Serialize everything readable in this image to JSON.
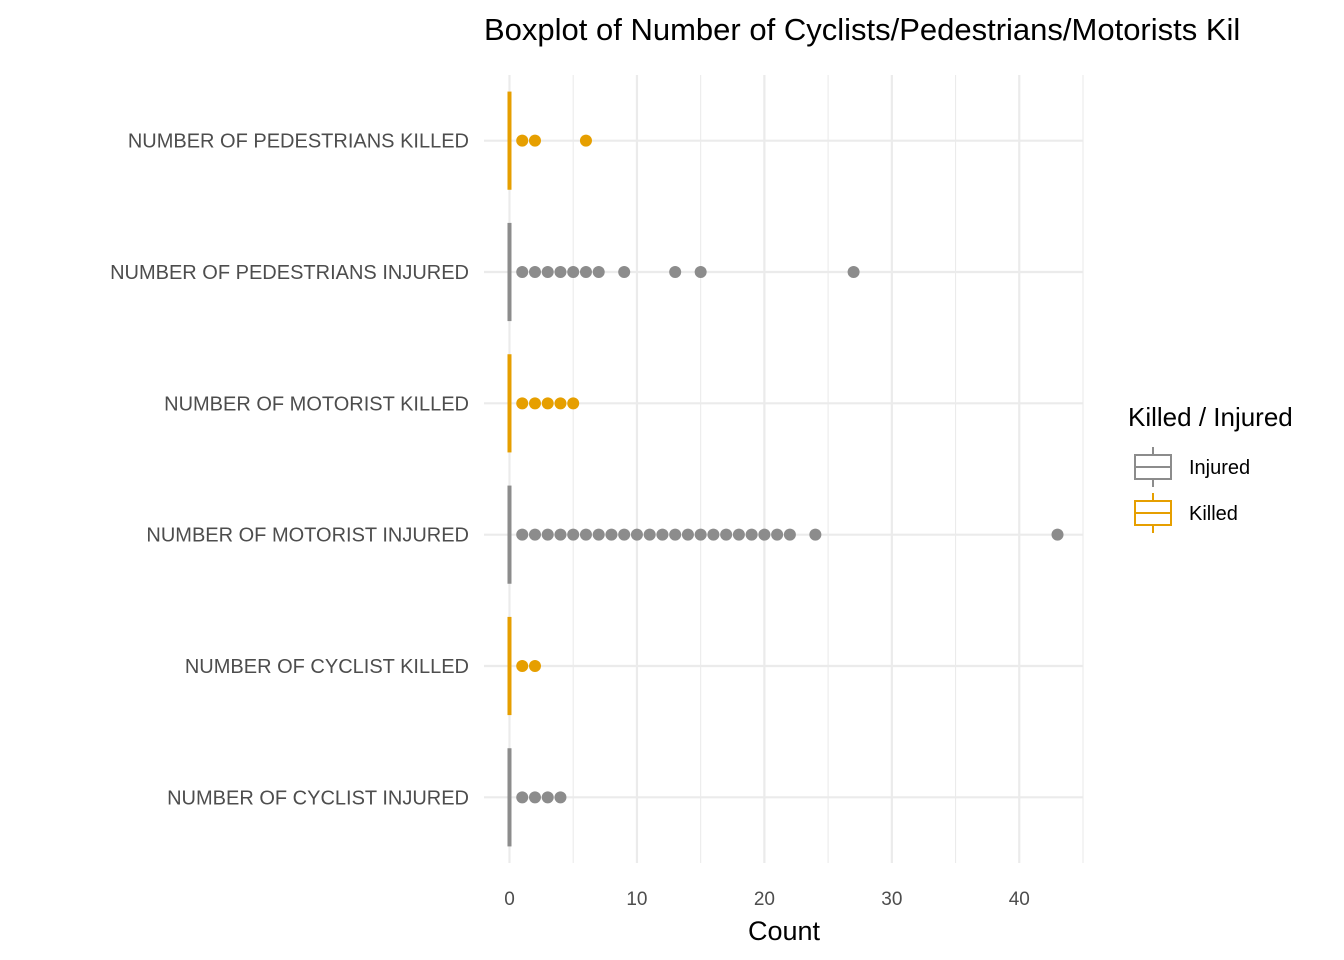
{
  "chart_data": {
    "type": "boxplot",
    "title": "Boxplot of Number of Cyclists/Pedestrians/Motorists Kil",
    "xlabel": "Count",
    "ylabel": "",
    "xlim": [
      -2,
      45
    ],
    "x_ticks": [
      0,
      10,
      20,
      30,
      40
    ],
    "grid": true,
    "legend": {
      "title": "Killed / Injured",
      "position": "right",
      "entries": [
        {
          "name": "Injured",
          "color": "#8c8c8c"
        },
        {
          "name": "Killed",
          "color": "#e69f00"
        }
      ]
    },
    "categories": [
      "NUMBER OF PEDESTRIANS KILLED",
      "NUMBER OF PEDESTRIANS INJURED",
      "NUMBER OF MOTORIST KILLED",
      "NUMBER OF MOTORIST INJURED",
      "NUMBER OF CYCLIST KILLED",
      "NUMBER OF CYCLIST INJURED"
    ],
    "series": [
      {
        "category": "NUMBER OF PEDESTRIANS KILLED",
        "group": "Killed",
        "median": 0,
        "q1": 0,
        "q3": 0,
        "outliers": [
          1,
          2,
          6
        ]
      },
      {
        "category": "NUMBER OF PEDESTRIANS INJURED",
        "group": "Injured",
        "median": 0,
        "q1": 0,
        "q3": 0,
        "outliers": [
          1,
          2,
          3,
          4,
          5,
          6,
          7,
          9,
          13,
          15,
          27
        ]
      },
      {
        "category": "NUMBER OF MOTORIST KILLED",
        "group": "Killed",
        "median": 0,
        "q1": 0,
        "q3": 0,
        "outliers": [
          1,
          2,
          3,
          4,
          5
        ]
      },
      {
        "category": "NUMBER OF MOTORIST INJURED",
        "group": "Injured",
        "median": 0,
        "q1": 0,
        "q3": 0,
        "outliers": [
          1,
          2,
          3,
          4,
          5,
          6,
          7,
          8,
          9,
          10,
          11,
          12,
          13,
          14,
          15,
          16,
          17,
          18,
          19,
          20,
          21,
          22,
          24,
          43
        ]
      },
      {
        "category": "NUMBER OF CYCLIST KILLED",
        "group": "Killed",
        "median": 0,
        "q1": 0,
        "q3": 0,
        "outliers": [
          1,
          2
        ]
      },
      {
        "category": "NUMBER OF CYCLIST INJURED",
        "group": "Injured",
        "median": 0,
        "q1": 0,
        "q3": 0,
        "outliers": [
          1,
          2,
          3,
          4
        ]
      }
    ]
  }
}
